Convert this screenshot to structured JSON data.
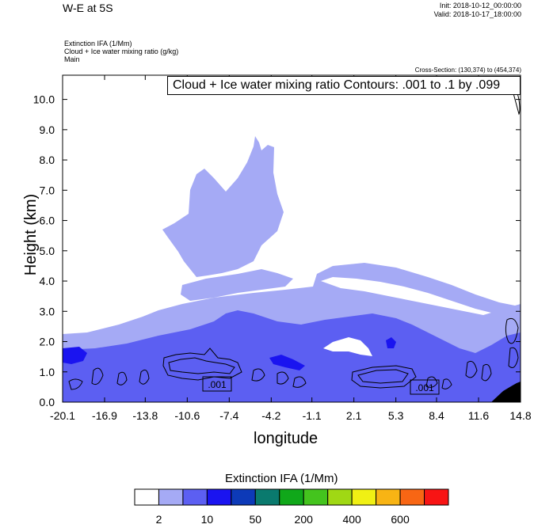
{
  "header": {
    "title": "W-E at 5S",
    "init": "Init: 2018-10-12_00:00:00",
    "valid": "Valid: 2018-10-17_18:00:00",
    "field1": "Extinction IFA   (1/Mm)",
    "field2": "Cloud + Ice water mixing ratio   (g/kg)",
    "field3": "Main",
    "cross_section": "Cross-Section: (130,374) to (454,374)",
    "contour_note": "Cloud + Ice water mixing ratio Contours: .001 to .1 by .099"
  },
  "chart_data": {
    "type": "heatmap",
    "title": "W-E at 5S",
    "xlabel": "longitude",
    "ylabel": "Height (km)",
    "xlim": [
      -20.1,
      14.8
    ],
    "ylim": [
      0,
      10.8
    ],
    "x_ticks": [
      "-20.1",
      "-16.9",
      "-13.8",
      "-10.6",
      "-7.4",
      "-4.2",
      "-1.1",
      "2.1",
      "5.3",
      "8.4",
      "11.6",
      "14.8"
    ],
    "y_ticks": [
      "0.0",
      "1.0",
      "2.0",
      "3.0",
      "4.0",
      "5.0",
      "6.0",
      "7.0",
      "8.0",
      "9.0",
      "10.0"
    ],
    "contour_labels": [
      ".001",
      ".001"
    ],
    "colorbar": {
      "title": "Extinction IFA  (1/Mm)",
      "colors": [
        "#ffffff",
        "#a5aaf5",
        "#5c5ff2",
        "#1a14f0",
        "#0d3ab8",
        "#0a7a6e",
        "#10a81a",
        "#44c41e",
        "#a0d814",
        "#f0f014",
        "#f8b414",
        "#f86614",
        "#f81414"
      ],
      "labels": [
        "2",
        "10",
        "50",
        "200",
        "400",
        "600"
      ]
    }
  }
}
